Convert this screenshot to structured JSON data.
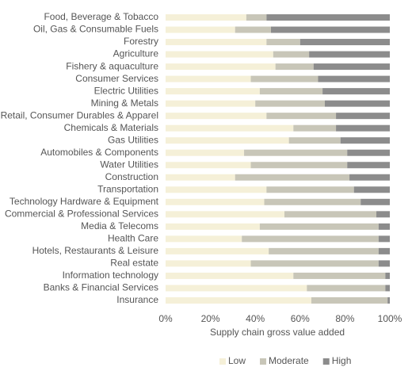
{
  "chart_data": {
    "type": "stacked-bar-horizontal",
    "xlabel": "Supply chain gross value added",
    "categories": [
      "Food, Beverage & Tobacco",
      "Oil, Gas & Consumable Fuels",
      "Forestry",
      "Agriculture",
      "Fishery & aquaculture",
      "Consumer Services",
      "Electric Utilities",
      "Mining & Metals",
      "Retail, Consumer Durables & Apparel",
      "Chemicals & Materials",
      "Gas Utilities",
      "Automobiles & Components",
      "Water Utilities",
      "Construction",
      "Transportation",
      "Technology Hardware & Equipment",
      "Commercial  & Professional Services",
      "Media & Telecoms",
      "Health Care",
      "Hotels, Restaurants & Leisure",
      "Real estate",
      "Information technology",
      "Banks & Financial Services",
      "Insurance"
    ],
    "series": [
      {
        "name": "Low",
        "color": "#f5f0d8",
        "values": [
          36,
          31,
          45,
          48,
          49,
          38,
          42,
          40,
          45,
          57,
          55,
          35,
          38,
          31,
          45,
          44,
          53,
          42,
          34,
          46,
          38,
          57,
          63,
          65
        ]
      },
      {
        "name": "Moderate",
        "color": "#c8c6b8",
        "values": [
          9,
          16,
          15,
          16,
          17,
          30,
          28,
          31,
          31,
          19,
          23,
          46,
          43,
          51,
          39,
          43,
          41,
          53,
          61,
          49,
          57,
          41,
          35,
          34
        ]
      },
      {
        "name": "High",
        "color": "#8c8c8c",
        "values": [
          55,
          53,
          40,
          36,
          34,
          32,
          30,
          29,
          24,
          24,
          22,
          19,
          19,
          18,
          16,
          13,
          6,
          5,
          5,
          5,
          5,
          2,
          2,
          1
        ]
      }
    ],
    "xlim": [
      0,
      100
    ],
    "xticks": [
      {
        "value": 0,
        "label": "0%"
      },
      {
        "value": 20,
        "label": "20%"
      },
      {
        "value": 40,
        "label": "40%"
      },
      {
        "value": 60,
        "label": "60%"
      },
      {
        "value": 80,
        "label": "80%"
      },
      {
        "value": 100,
        "label": "100%"
      }
    ],
    "legend": "bottom"
  }
}
